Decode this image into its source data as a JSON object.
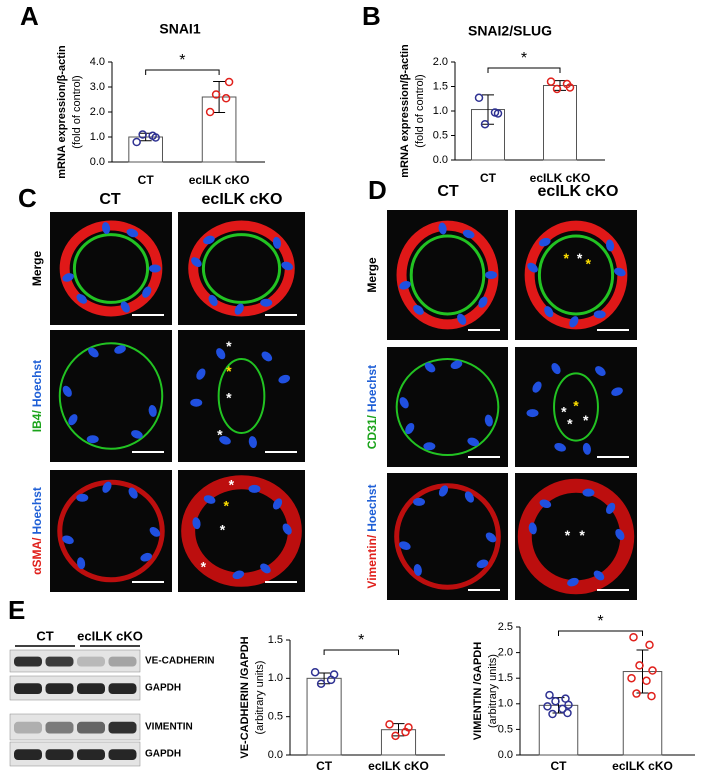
{
  "panel_labels": [
    "A",
    "B",
    "C",
    "D",
    "E"
  ],
  "chart_data": [
    {
      "type": "bar",
      "panel": "A",
      "title": "SNAI1",
      "ylabel": [
        "mRNA expression/β-actin",
        "(fold of control)"
      ],
      "categories": [
        "CT",
        "ecILK cKO"
      ],
      "values": [
        1.0,
        2.6
      ],
      "errors": [
        0.15,
        0.62
      ],
      "points": [
        [
          0.8,
          1.05,
          1.1,
          0.98
        ],
        [
          2.0,
          2.55,
          2.7,
          3.2
        ]
      ],
      "bar_color": "#ffffff",
      "point_colors": [
        "#2e3192",
        "#e0201b"
      ],
      "significance": "*",
      "ylim": [
        0,
        4
      ],
      "yticks": [
        {
          "value": 0,
          "label": "0.0"
        },
        {
          "value": 1,
          "label": "1.0"
        },
        {
          "value": 2,
          "label": "2.0"
        },
        {
          "value": 3,
          "label": "3.0"
        },
        {
          "value": 4,
          "label": "4.0"
        }
      ]
    },
    {
      "type": "bar",
      "panel": "B",
      "title": "SNAI2/SLUG",
      "ylabel": [
        "mRNA expression/β-actin",
        "(fold of control)"
      ],
      "categories": [
        "CT",
        "ecILK cKO"
      ],
      "values": [
        1.03,
        1.52
      ],
      "errors": [
        0.3,
        0.1
      ],
      "points": [
        [
          1.27,
          0.97,
          0.73,
          0.95
        ],
        [
          1.6,
          1.55,
          1.45,
          1.48
        ]
      ],
      "bar_color": "#ffffff",
      "point_colors": [
        "#2e3192",
        "#e0201b"
      ],
      "significance": "*",
      "ylim": [
        0,
        2
      ],
      "yticks": [
        {
          "value": 0,
          "label": "0.0"
        },
        0.5,
        {
          "value": 1,
          "label": "1.0"
        },
        1.5,
        {
          "value": 2,
          "label": "2.0"
        }
      ]
    },
    {
      "type": "bar",
      "panel": "E",
      "ylabel": [
        "VE-CADHERIN /GAPDH",
        "(arbitrary units)"
      ],
      "categories": [
        "CT",
        "ecILK cKO"
      ],
      "values": [
        1.0,
        0.33
      ],
      "errors": [
        0.07,
        0.08
      ],
      "points": [
        [
          1.08,
          0.98,
          0.93,
          1.05
        ],
        [
          0.4,
          0.3,
          0.25,
          0.36
        ]
      ],
      "bar_color": "#ffffff",
      "point_colors": [
        "#2e3192",
        "#e0201b"
      ],
      "significance": "*",
      "ylim": [
        0,
        1.5
      ],
      "yticks": [
        {
          "value": 0,
          "label": "0.0"
        },
        0.5,
        {
          "value": 1,
          "label": "1.0"
        },
        1.5
      ]
    },
    {
      "type": "bar",
      "panel": "E",
      "ylabel": [
        "VIMENTIN /GAPDH",
        "(arbitrary units)"
      ],
      "categories": [
        "CT",
        "ecILK cKO"
      ],
      "values": [
        0.97,
        1.63
      ],
      "errors": [
        0.15,
        0.42
      ],
      "points": [
        [
          1.17,
          1.1,
          1.05,
          0.98,
          0.95,
          0.9,
          0.8,
          0.82
        ],
        [
          2.3,
          2.15,
          1.75,
          1.65,
          1.5,
          1.45,
          1.2,
          1.15
        ]
      ],
      "bar_color": "#ffffff",
      "point_colors": [
        "#2e3192",
        "#e0201b"
      ],
      "significance": "*",
      "ylim": [
        0,
        2.5
      ],
      "yticks": [
        {
          "value": 0,
          "label": "0.0"
        },
        0.5,
        {
          "value": 1,
          "label": "1.0"
        },
        1.5,
        {
          "value": 2,
          "label": "2.0"
        },
        2.5
      ]
    }
  ],
  "panel_C": {
    "columns": [
      "CT",
      "ecILK cKO"
    ],
    "rows": [
      [
        {
          "text": "Merge",
          "color": "#000000"
        }
      ],
      [
        {
          "text": "IB4/",
          "color": "#1aa31a"
        },
        {
          "text": "Hoechst",
          "color": "#1f5fd6"
        }
      ],
      [
        {
          "text": "αSMA/",
          "color": "#e0201b"
        },
        {
          "text": "Hoechst",
          "color": "#1f5fd6"
        }
      ]
    ],
    "annotations": [
      [],
      [],
      [],
      [
        {
          "text": "*",
          "color": "#ffffff"
        },
        {
          "text": "*",
          "color": "#ffe000"
        },
        {
          "text": "*",
          "color": "#ffffff"
        },
        {
          "text": "*",
          "color": "#ffffff"
        }
      ],
      [],
      [
        {
          "text": "*",
          "color": "#ffffff"
        },
        {
          "text": "*",
          "color": "#ffe000"
        },
        {
          "text": "*",
          "color": "#ffffff"
        },
        {
          "text": "*",
          "color": "#ffffff"
        }
      ]
    ]
  },
  "panel_D": {
    "columns": [
      "CT",
      "ecILK cKO"
    ],
    "rows": [
      [
        {
          "text": "Merge",
          "color": "#000000"
        }
      ],
      [
        {
          "text": "CD31/",
          "color": "#1aa31a"
        },
        {
          "text": "Hoechst",
          "color": "#1f5fd6"
        }
      ],
      [
        {
          "text": "Vimentin/",
          "color": "#e0201b"
        },
        {
          "text": "Hoechst",
          "color": "#1f5fd6"
        }
      ]
    ],
    "annotations": [
      [],
      [
        {
          "text": "*",
          "color": "#ffe000"
        },
        {
          "text": "*",
          "color": "#ffffff"
        },
        {
          "text": "*",
          "color": "#ffe000"
        }
      ],
      [],
      [
        {
          "text": "*",
          "color": "#ffffff"
        },
        {
          "text": "*",
          "color": "#ffe000"
        },
        {
          "text": "*",
          "color": "#ffffff"
        },
        {
          "text": "*",
          "color": "#ffffff"
        }
      ],
      [],
      [
        {
          "text": "*",
          "color": "#ffffff"
        },
        {
          "text": "*",
          "color": "#ffffff"
        }
      ]
    ]
  },
  "panel_E_blot": {
    "groups": [
      "CT",
      "ecILK cKO"
    ],
    "bands": [
      "VE-CADHERIN",
      "GAPDH",
      "VIMENTIN",
      "GAPDH"
    ]
  }
}
